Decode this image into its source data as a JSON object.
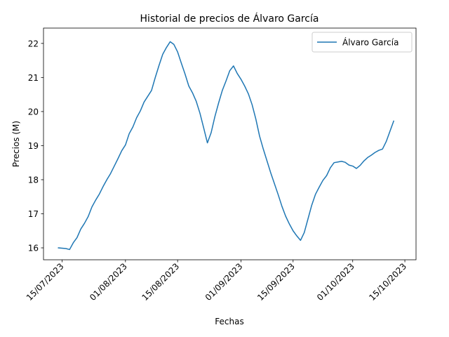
{
  "chart_data": {
    "type": "line",
    "title": "Historial de precios de Álvaro García",
    "xlabel": "Fechas",
    "ylabel": "Precios (M)",
    "grid": false,
    "legend_position": "top-right",
    "ylim": [
      15.65,
      22.45
    ],
    "xlim": [
      "2023-07-10",
      "2023-10-18"
    ],
    "x_ticks": [
      {
        "date": "2023-07-15",
        "label": "15/07/2023"
      },
      {
        "date": "2023-08-01",
        "label": "01/08/2023"
      },
      {
        "date": "2023-08-15",
        "label": "15/08/2023"
      },
      {
        "date": "2023-09-01",
        "label": "01/09/2023"
      },
      {
        "date": "2023-09-15",
        "label": "15/09/2023"
      },
      {
        "date": "2023-10-01",
        "label": "01/10/2023"
      },
      {
        "date": "2023-10-15",
        "label": "15/10/2023"
      }
    ],
    "y_ticks": [
      16,
      17,
      18,
      19,
      20,
      21,
      22
    ],
    "series": [
      {
        "name": "Álvaro García",
        "color": "#1f77b4",
        "points": [
          [
            "2023-07-14",
            16.0
          ],
          [
            "2023-07-16",
            15.98
          ],
          [
            "2023-07-17",
            15.95
          ],
          [
            "2023-07-18",
            16.15
          ],
          [
            "2023-07-19",
            16.3
          ],
          [
            "2023-07-20",
            16.55
          ],
          [
            "2023-07-21",
            16.72
          ],
          [
            "2023-07-22",
            16.92
          ],
          [
            "2023-07-23",
            17.2
          ],
          [
            "2023-07-24",
            17.4
          ],
          [
            "2023-07-25",
            17.58
          ],
          [
            "2023-07-26",
            17.8
          ],
          [
            "2023-07-27",
            18.0
          ],
          [
            "2023-07-28",
            18.18
          ],
          [
            "2023-07-29",
            18.4
          ],
          [
            "2023-07-30",
            18.62
          ],
          [
            "2023-07-31",
            18.85
          ],
          [
            "2023-08-01",
            19.02
          ],
          [
            "2023-08-02",
            19.35
          ],
          [
            "2023-08-03",
            19.55
          ],
          [
            "2023-08-04",
            19.82
          ],
          [
            "2023-08-05",
            20.02
          ],
          [
            "2023-08-06",
            20.28
          ],
          [
            "2023-08-07",
            20.45
          ],
          [
            "2023-08-08",
            20.62
          ],
          [
            "2023-08-09",
            21.0
          ],
          [
            "2023-08-10",
            21.35
          ],
          [
            "2023-08-11",
            21.68
          ],
          [
            "2023-08-12",
            21.88
          ],
          [
            "2023-08-13",
            22.05
          ],
          [
            "2023-08-14",
            21.97
          ],
          [
            "2023-08-15",
            21.75
          ],
          [
            "2023-08-16",
            21.42
          ],
          [
            "2023-08-17",
            21.1
          ],
          [
            "2023-08-18",
            20.75
          ],
          [
            "2023-08-19",
            20.55
          ],
          [
            "2023-08-20",
            20.3
          ],
          [
            "2023-08-21",
            19.95
          ],
          [
            "2023-08-22",
            19.52
          ],
          [
            "2023-08-23",
            19.08
          ],
          [
            "2023-08-24",
            19.38
          ],
          [
            "2023-08-25",
            19.85
          ],
          [
            "2023-08-26",
            20.25
          ],
          [
            "2023-08-27",
            20.62
          ],
          [
            "2023-08-28",
            20.9
          ],
          [
            "2023-08-29",
            21.2
          ],
          [
            "2023-08-30",
            21.34
          ],
          [
            "2023-08-31",
            21.12
          ],
          [
            "2023-09-01",
            20.95
          ],
          [
            "2023-09-02",
            20.75
          ],
          [
            "2023-09-03",
            20.52
          ],
          [
            "2023-09-04",
            20.2
          ],
          [
            "2023-09-05",
            19.78
          ],
          [
            "2023-09-06",
            19.28
          ],
          [
            "2023-09-07",
            18.9
          ],
          [
            "2023-09-08",
            18.55
          ],
          [
            "2023-09-09",
            18.2
          ],
          [
            "2023-09-10",
            17.88
          ],
          [
            "2023-09-11",
            17.56
          ],
          [
            "2023-09-12",
            17.22
          ],
          [
            "2023-09-13",
            16.93
          ],
          [
            "2023-09-14",
            16.7
          ],
          [
            "2023-09-15",
            16.5
          ],
          [
            "2023-09-16",
            16.35
          ],
          [
            "2023-09-17",
            16.22
          ],
          [
            "2023-09-18",
            16.45
          ],
          [
            "2023-09-19",
            16.85
          ],
          [
            "2023-09-20",
            17.25
          ],
          [
            "2023-09-21",
            17.57
          ],
          [
            "2023-09-22",
            17.78
          ],
          [
            "2023-09-23",
            17.98
          ],
          [
            "2023-09-24",
            18.12
          ],
          [
            "2023-09-25",
            18.35
          ],
          [
            "2023-09-26",
            18.5
          ],
          [
            "2023-09-27",
            18.52
          ],
          [
            "2023-09-28",
            18.54
          ],
          [
            "2023-09-29",
            18.51
          ],
          [
            "2023-09-30",
            18.43
          ],
          [
            "2023-10-01",
            18.4
          ],
          [
            "2023-10-02",
            18.33
          ],
          [
            "2023-10-03",
            18.42
          ],
          [
            "2023-10-04",
            18.55
          ],
          [
            "2023-10-05",
            18.65
          ],
          [
            "2023-10-06",
            18.72
          ],
          [
            "2023-10-07",
            18.8
          ],
          [
            "2023-10-08",
            18.86
          ],
          [
            "2023-10-09",
            18.9
          ],
          [
            "2023-10-10",
            19.12
          ],
          [
            "2023-10-11",
            19.42
          ],
          [
            "2023-10-12",
            19.72
          ]
        ]
      }
    ]
  }
}
